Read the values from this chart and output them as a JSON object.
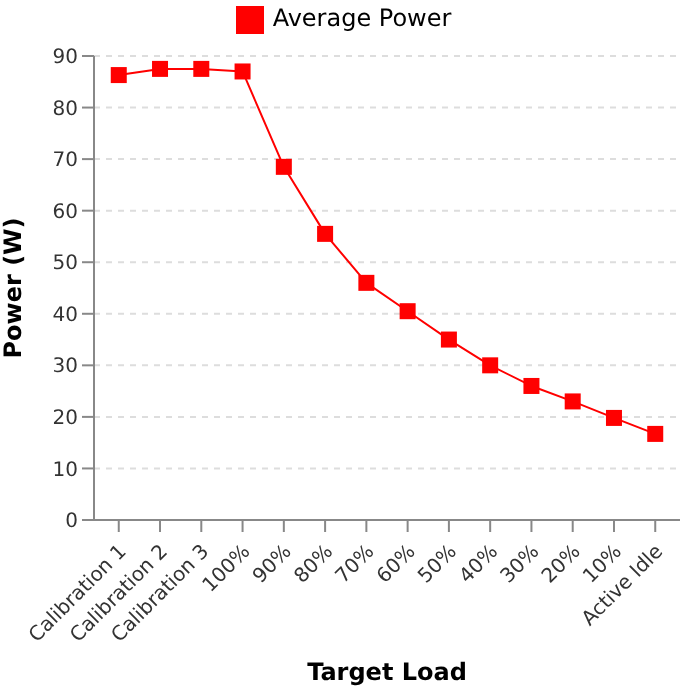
{
  "chart_data": {
    "type": "line",
    "xlabel": "Target Load",
    "ylabel": "Power (W)",
    "categories": [
      "Calibration 1",
      "Calibration 2",
      "Calibration 3",
      "100%",
      "90%",
      "80%",
      "70%",
      "60%",
      "50%",
      "40%",
      "30%",
      "20%",
      "10%",
      "Active Idle"
    ],
    "series": [
      {
        "name": "Average Power",
        "color": "#ff0000",
        "values": [
          86.3,
          87.5,
          87.5,
          87,
          68.5,
          55.5,
          46,
          40.5,
          35,
          30,
          26,
          23,
          19.8,
          16.7
        ]
      }
    ],
    "ylim": [
      0,
      90
    ],
    "yticks": [
      0,
      10,
      20,
      30,
      40,
      50,
      60,
      70,
      80,
      90
    ],
    "grid": "y",
    "legend": "top",
    "marker": "square"
  }
}
